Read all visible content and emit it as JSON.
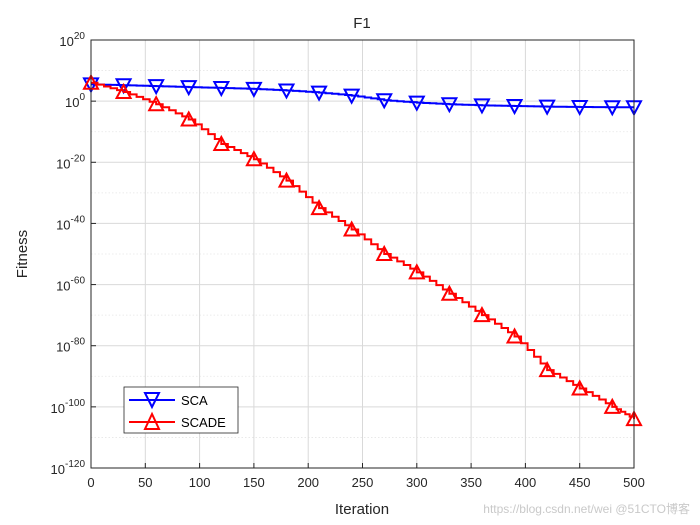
{
  "chart_data": {
    "type": "line",
    "title": "F1",
    "xlabel": "Iteration",
    "ylabel": "Fitness",
    "yscale": "log",
    "xlim": [
      0,
      500
    ],
    "ylim_exp": [
      -120,
      20
    ],
    "grid": true,
    "minor_grid": true,
    "legend_position": "bottom-left",
    "xticks": [
      "0",
      "50",
      "100",
      "150",
      "200",
      "250",
      "300",
      "350",
      "400",
      "450",
      "500"
    ],
    "yticks": [
      {
        "base": "10",
        "exp": "20"
      },
      {
        "base": "10",
        "exp": "0"
      },
      {
        "base": "10",
        "exp": "-20"
      },
      {
        "base": "10",
        "exp": "-40"
      },
      {
        "base": "10",
        "exp": "-60"
      },
      {
        "base": "10",
        "exp": "-80"
      },
      {
        "base": "10",
        "exp": "-100"
      },
      {
        "base": "10",
        "exp": "-120"
      }
    ],
    "series": [
      {
        "name": "SCA",
        "color": "#0000ff",
        "marker": "triangle-down",
        "x": [
          0,
          30,
          60,
          90,
          120,
          150,
          180,
          210,
          240,
          270,
          300,
          330,
          360,
          390,
          420,
          450,
          480,
          500
        ],
        "log10y": [
          5.5,
          5.2,
          4.9,
          4.6,
          4.3,
          4.0,
          3.5,
          2.8,
          1.8,
          0.3,
          -0.5,
          -1.0,
          -1.4,
          -1.6,
          -1.8,
          -1.9,
          -2.0,
          -2.0
        ]
      },
      {
        "name": "SCADE",
        "color": "#ff0000",
        "marker": "triangle-up",
        "x": [
          0,
          30,
          60,
          90,
          120,
          150,
          180,
          210,
          240,
          270,
          300,
          330,
          360,
          390,
          420,
          450,
          480,
          500
        ],
        "log10y": [
          6,
          3,
          -1,
          -6,
          -14,
          -19,
          -26,
          -35,
          -42,
          -50,
          -56,
          -63,
          -70,
          -77,
          -88,
          -94,
          -100,
          -104
        ]
      }
    ]
  },
  "watermark": "https://blog.csdn.net/wei   @51CTO博客"
}
